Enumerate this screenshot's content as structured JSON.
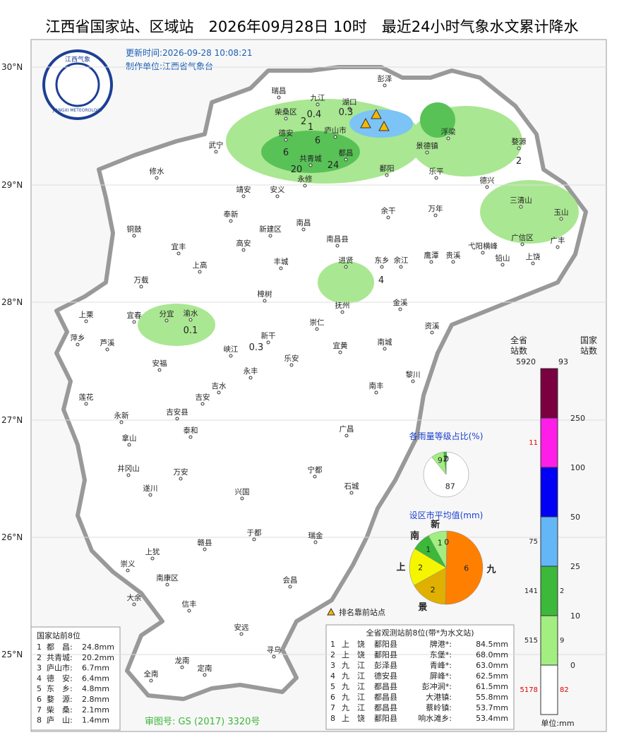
{
  "header": {
    "title": "江西省国家站、区域站　2026年09月28日 10时　最近24小时气象水文累计降水",
    "update_time": "更新时间:2026-09-28 10:08:21",
    "producer": "制作单位:江西省气象台",
    "logo_cn": "江西气象",
    "logo_en": "JIANGXI METEOROLOGY"
  },
  "latitudes": [
    "30°N",
    "29°N",
    "28°N",
    "27°N",
    "26°N",
    "25°N"
  ],
  "places": [
    "彭泽",
    "瑞昌",
    "九江",
    "湖口",
    "柴桑区",
    "庐山市",
    "浮梁",
    "德安",
    "武宁",
    "景德镇",
    "婺源",
    "共青城",
    "都昌",
    "修水",
    "鄱阳",
    "乐平",
    "永修",
    "德兴",
    "靖安",
    "安义",
    "三清山",
    "余干",
    "万年",
    "玉山",
    "奉新",
    "南昌",
    "新建区",
    "铜鼓",
    "广信区",
    "南昌县",
    "广丰",
    "宜丰",
    "高安",
    "鹰潭",
    "弋阳横峰",
    "贵溪",
    "铅山",
    "上饶",
    "进贤",
    "东乡",
    "余江",
    "上高",
    "丰城",
    "万载",
    "樟树",
    "金溪",
    "渝水",
    "宜春",
    "分宜",
    "上栗",
    "抚州",
    "崇仁",
    "资溪",
    "萍乡",
    "芦溪",
    "新干",
    "峡江",
    "宜黄",
    "南城",
    "安福",
    "乐安",
    "永丰",
    "黎川",
    "吉水",
    "南丰",
    "莲花",
    "吉安",
    "吉安县",
    "永新",
    "泰和",
    "广昌",
    "拿山",
    "井冈山",
    "宁都",
    "万安",
    "石城",
    "遂川",
    "兴国",
    "于都",
    "瑞金",
    "赣县",
    "上犹",
    "崇义",
    "南康区",
    "会昌",
    "大余",
    "信丰",
    "安远",
    "寻乌",
    "龙南",
    "定南",
    "全南"
  ],
  "station_values": [
    {
      "value": "2"
    },
    {
      "value": "0.4"
    },
    {
      "value": "0.3"
    },
    {
      "value": "1"
    },
    {
      "value": "6"
    },
    {
      "value": "6"
    },
    {
      "value": "20"
    },
    {
      "value": "24"
    },
    {
      "value": "2"
    },
    {
      "value": "4"
    },
    {
      "value": "0.1"
    },
    {
      "value": "0.3"
    }
  ],
  "legend": {
    "header_left": "全省\n站数",
    "header_right": "国家\n站数",
    "total_all": "5920",
    "total_national": "93",
    "ticks": [
      "0",
      "10",
      "25",
      "50",
      "100",
      "250"
    ],
    "counts_all": [
      "5178",
      "515",
      "141",
      "75",
      "",
      "11",
      ""
    ],
    "counts_national": [
      "82",
      "9",
      "2",
      "",
      "",
      "",
      ""
    ],
    "unit": "单位:mm",
    "top_marker": "排名靠前站点"
  },
  "pie_levels": {
    "title": "各雨量等级占比(%)",
    "values": [
      87,
      9,
      2,
      0
    ]
  },
  "pie_cities": {
    "title": "设区市平均值(mm)",
    "names": [
      "九",
      "景",
      "上",
      "南",
      "新",
      null
    ],
    "values": [
      6,
      2,
      2,
      1,
      1,
      0
    ]
  },
  "national_table": {
    "title": "国家站前8位",
    "rows": [
      [
        "1",
        "都　昌:",
        "24.8mm"
      ],
      [
        "2",
        "共青城:",
        "20.2mm"
      ],
      [
        "3",
        "庐山市:",
        "6.7mm"
      ],
      [
        "4",
        "德　安:",
        "6.4mm"
      ],
      [
        "5",
        "东　乡:",
        "4.8mm"
      ],
      [
        "6",
        "婺　源:",
        "2.8mm"
      ],
      [
        "7",
        "柴　桑:",
        "2.1mm"
      ],
      [
        "8",
        "庐　山:",
        "1.4mm"
      ]
    ]
  },
  "all_table": {
    "title": "全省观测站前8位(带*为水文站)",
    "rows": [
      [
        "1",
        "上　饶",
        "鄱阳县",
        "牌港*:",
        "84.5mm"
      ],
      [
        "2",
        "上　饶",
        "鄱阳县",
        "东堡*:",
        "68.0mm"
      ],
      [
        "3",
        "九　江",
        "彭泽县",
        "青峰*:",
        "63.0mm"
      ],
      [
        "4",
        "九　江",
        "德安县",
        "屏峰*:",
        "62.5mm"
      ],
      [
        "5",
        "九　江",
        "都昌县",
        "彭冲涧*:",
        "61.5mm"
      ],
      [
        "6",
        "九　江",
        "都昌县",
        "大港镇:",
        "55.8mm"
      ],
      [
        "7",
        "九　江",
        "都昌县",
        "蔡岭镇:",
        "53.7mm"
      ],
      [
        "8",
        "上　饶",
        "鄱阳县",
        "响水滩乡:",
        "53.4mm"
      ]
    ]
  },
  "map_approval": "审图号: GS (2017) 3320号"
}
